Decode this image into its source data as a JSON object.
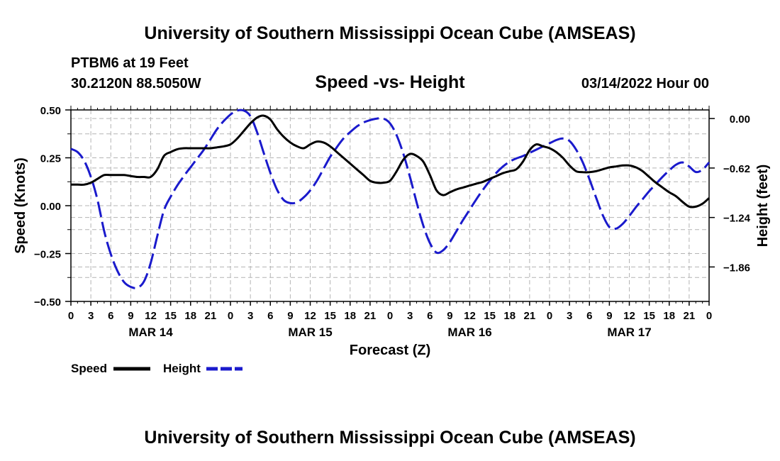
{
  "header": {
    "title": "University of Southern Mississippi Ocean Cube (AMSEAS)",
    "station": "PTBM6 at 19 Feet",
    "coords": "30.2120N  88.5050W",
    "subtitle": "Speed -vs- Height",
    "date": "03/14/2022 Hour 00"
  },
  "footer": {
    "title": "University of Southern Mississippi Ocean Cube (AMSEAS)"
  },
  "colors": {
    "speed": "#000000",
    "height": "#1a1acc",
    "grid": "#b4b4b4"
  },
  "chart_data": {
    "type": "line",
    "title": "Speed -vs- Height",
    "xlabel": "Forecast (Z)",
    "ylabel": "Speed (Knots)",
    "y2label": "Height (feet)",
    "xlim": [
      0,
      96
    ],
    "ylim": [
      -0.5,
      0.5
    ],
    "y2lim": [
      -2.292,
      0.108
    ],
    "y_ticks": [
      0.5,
      0.25,
      0.0,
      -0.25,
      -0.5
    ],
    "y_tick_labels": [
      "0.50",
      "0.25",
      "0.00",
      "−0.25",
      "−0.50"
    ],
    "y2_ticks": [
      0.0,
      -0.62,
      -1.24,
      -1.86
    ],
    "y2_tick_labels": [
      "0.00",
      "−0.62",
      "−1.24",
      "−1.86"
    ],
    "x_ticks": [
      0,
      3,
      6,
      9,
      12,
      15,
      18,
      21,
      24,
      27,
      30,
      33,
      36,
      39,
      42,
      45,
      48,
      51,
      54,
      57,
      60,
      63,
      66,
      69,
      72,
      75,
      78,
      81,
      84,
      87,
      90,
      93,
      96
    ],
    "x_tick_labels": [
      "0",
      "3",
      "6",
      "9",
      "12",
      "15",
      "18",
      "21",
      "0",
      "3",
      "6",
      "9",
      "12",
      "15",
      "18",
      "21",
      "0",
      "3",
      "6",
      "9",
      "12",
      "15",
      "18",
      "21",
      "0",
      "3",
      "6",
      "9",
      "12",
      "15",
      "18",
      "21",
      "0"
    ],
    "day_labels": [
      {
        "x": 12,
        "label": "MAR 14"
      },
      {
        "x": 36,
        "label": "MAR 15"
      },
      {
        "x": 60,
        "label": "MAR 16"
      },
      {
        "x": 84,
        "label": "MAR 17"
      }
    ],
    "grid": true,
    "legend": {
      "position": "bottom-left",
      "entries": [
        "Speed",
        "Height"
      ]
    },
    "series": [
      {
        "name": "Speed",
        "axis": "left",
        "style": "solid",
        "x": [
          0,
          1,
          2,
          3,
          4,
          5,
          6,
          7,
          8,
          9,
          10,
          11,
          12,
          13,
          14,
          15,
          16,
          17,
          18,
          19,
          20,
          21,
          22,
          23,
          24,
          25,
          26,
          27,
          28,
          29,
          30,
          31,
          32,
          33,
          34,
          35,
          36,
          37,
          38,
          39,
          40,
          41,
          42,
          43,
          44,
          45,
          46,
          47,
          48,
          49,
          50,
          51,
          52,
          53,
          54,
          55,
          56,
          57,
          58,
          59,
          60,
          61,
          62,
          63,
          64,
          65,
          66,
          67,
          68,
          69,
          70,
          71,
          72,
          73,
          74,
          75,
          76,
          77,
          78,
          79,
          80,
          81,
          82,
          83,
          84,
          85,
          86,
          87,
          88,
          89,
          90,
          91,
          92,
          93,
          94,
          95,
          96
        ],
        "values": [
          0.11,
          0.11,
          0.11,
          0.12,
          0.14,
          0.16,
          0.16,
          0.16,
          0.16,
          0.155,
          0.15,
          0.15,
          0.15,
          0.19,
          0.26,
          0.28,
          0.295,
          0.3,
          0.3,
          0.3,
          0.3,
          0.3,
          0.305,
          0.31,
          0.32,
          0.35,
          0.39,
          0.43,
          0.46,
          0.47,
          0.45,
          0.4,
          0.36,
          0.33,
          0.31,
          0.3,
          0.32,
          0.335,
          0.33,
          0.31,
          0.28,
          0.25,
          0.22,
          0.19,
          0.16,
          0.13,
          0.12,
          0.12,
          0.13,
          0.18,
          0.24,
          0.27,
          0.26,
          0.23,
          0.16,
          0.08,
          0.055,
          0.07,
          0.085,
          0.095,
          0.105,
          0.115,
          0.125,
          0.14,
          0.155,
          0.17,
          0.18,
          0.19,
          0.23,
          0.29,
          0.32,
          0.31,
          0.3,
          0.28,
          0.25,
          0.21,
          0.18,
          0.175,
          0.175,
          0.18,
          0.19,
          0.2,
          0.205,
          0.21,
          0.21,
          0.2,
          0.18,
          0.15,
          0.12,
          0.095,
          0.07,
          0.05,
          0.02,
          -0.005,
          -0.005,
          0.01,
          0.04
        ]
      },
      {
        "name": "Height",
        "axis": "right",
        "style": "dashed",
        "x": [
          0,
          1,
          2,
          3,
          4,
          5,
          6,
          7,
          8,
          9,
          10,
          11,
          12,
          13,
          14,
          15,
          16,
          17,
          18,
          19,
          20,
          21,
          22,
          23,
          24,
          25,
          26,
          27,
          28,
          29,
          30,
          31,
          32,
          33,
          34,
          35,
          36,
          37,
          38,
          39,
          40,
          41,
          42,
          43,
          44,
          45,
          46,
          47,
          48,
          49,
          50,
          51,
          52,
          53,
          54,
          55,
          56,
          57,
          58,
          59,
          60,
          61,
          62,
          63,
          64,
          65,
          66,
          67,
          68,
          69,
          70,
          71,
          72,
          73,
          74,
          75,
          76,
          77,
          78,
          79,
          80,
          81,
          82,
          83,
          84,
          85,
          86,
          87,
          88,
          89,
          90,
          91,
          92,
          93,
          94,
          95,
          96
        ],
        "values": [
          -0.38,
          -0.42,
          -0.53,
          -0.73,
          -1.02,
          -1.41,
          -1.7,
          -1.91,
          -2.05,
          -2.11,
          -2.12,
          -2.04,
          -1.81,
          -1.47,
          -1.15,
          -0.98,
          -0.84,
          -0.72,
          -0.61,
          -0.5,
          -0.39,
          -0.26,
          -0.13,
          -0.03,
          0.05,
          0.1,
          0.1,
          0.03,
          -0.17,
          -0.43,
          -0.68,
          -0.89,
          -1.02,
          -1.06,
          -1.05,
          -0.99,
          -0.9,
          -0.78,
          -0.63,
          -0.48,
          -0.36,
          -0.25,
          -0.17,
          -0.1,
          -0.05,
          -0.02,
          0.0,
          0.0,
          -0.06,
          -0.21,
          -0.44,
          -0.73,
          -1.05,
          -1.34,
          -1.56,
          -1.68,
          -1.65,
          -1.55,
          -1.41,
          -1.27,
          -1.14,
          -1.01,
          -0.89,
          -0.78,
          -0.68,
          -0.6,
          -0.54,
          -0.5,
          -0.47,
          -0.43,
          -0.39,
          -0.35,
          -0.31,
          -0.27,
          -0.25,
          -0.28,
          -0.39,
          -0.55,
          -0.76,
          -0.99,
          -1.21,
          -1.36,
          -1.38,
          -1.32,
          -1.22,
          -1.11,
          -1.01,
          -0.91,
          -0.82,
          -0.73,
          -0.65,
          -0.58,
          -0.55,
          -0.6,
          -0.67,
          -0.64,
          -0.55
        ]
      }
    ]
  }
}
